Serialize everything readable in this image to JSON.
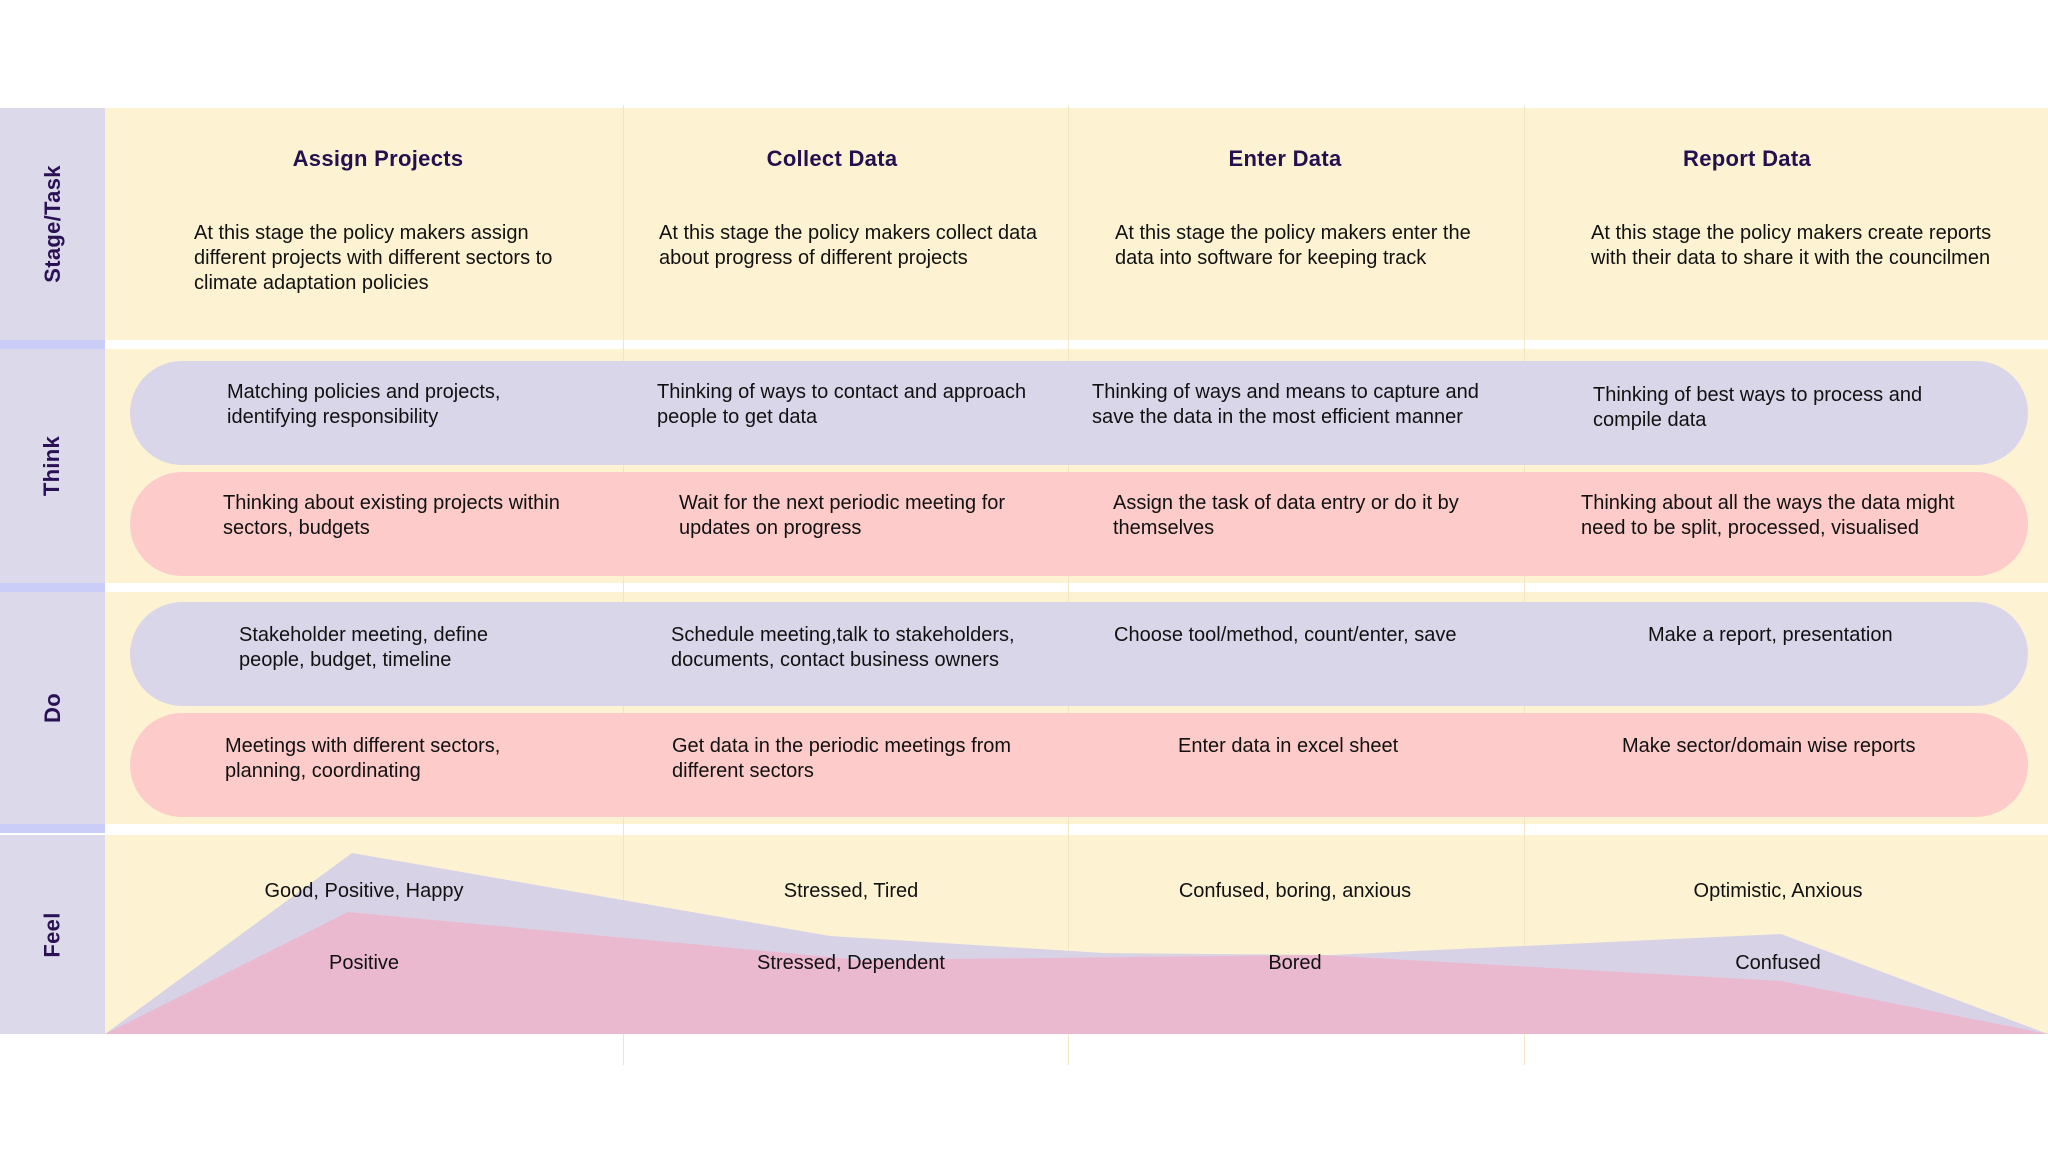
{
  "rows": {
    "stage_task": "Stage/Task",
    "think": "Think",
    "do": "Do",
    "feel": "Feel"
  },
  "stages": [
    {
      "title": "Assign Projects",
      "description": "At this stage the policy makers assign different projects with different sectors to climate adaptation policies",
      "think_lavender": "Matching policies and projects, identifying responsibility",
      "think_pink": "Thinking about existing projects within sectors, budgets",
      "do_lavender": "Stakeholder meeting, define people, budget, timeline",
      "do_pink": "Meetings with different sectors, planning, coordinating",
      "feel_top": "Good, Positive, Happy",
      "feel_bottom": "Positive"
    },
    {
      "title": "Collect Data",
      "description": "At this stage the policy makers collect data about progress of different projects",
      "think_lavender": "Thinking of ways to contact and approach people to get data",
      "think_pink": "Wait for the next periodic meeting for updates on progress",
      "do_lavender": "Schedule meeting,talk to stakeholders, documents, contact business owners",
      "do_pink": "Get data in the periodic meetings from different sectors",
      "feel_top": "Stressed, Tired",
      "feel_bottom": "Stressed, Dependent"
    },
    {
      "title": "Enter Data",
      "description": "At this stage the policy makers enter the data into software for keeping track",
      "think_lavender": "Thinking of ways and means to capture and save the data in the most efficient manner",
      "think_pink": "Assign the task of data entry or do it by themselves",
      "do_lavender": "Choose tool/method, count/enter, save",
      "do_pink": "Enter data in excel sheet",
      "feel_top": "Confused, boring, anxious",
      "feel_bottom": "Bored"
    },
    {
      "title": "Report Data",
      "description": "At this stage the policy makers create reports with their data to share it with the councilmen",
      "think_lavender": "Thinking of best ways to process and compile data",
      "think_pink": "Thinking about all the ways the data might need to be split, processed, visualised",
      "do_lavender": "Make a report, presentation",
      "do_pink": "Make sector/domain wise reports",
      "feel_top": "Optimistic, Anxious",
      "feel_bottom": "Confused"
    }
  ],
  "colors": {
    "band": "#fdf3d3",
    "sidebar": "#dcd9ea",
    "lavender": "#d9d6ea",
    "pink": "#fdcbc9",
    "title": "#25104f",
    "feel_lavender": "#d7d2e6",
    "feel_pink": "#ebb9cf"
  }
}
